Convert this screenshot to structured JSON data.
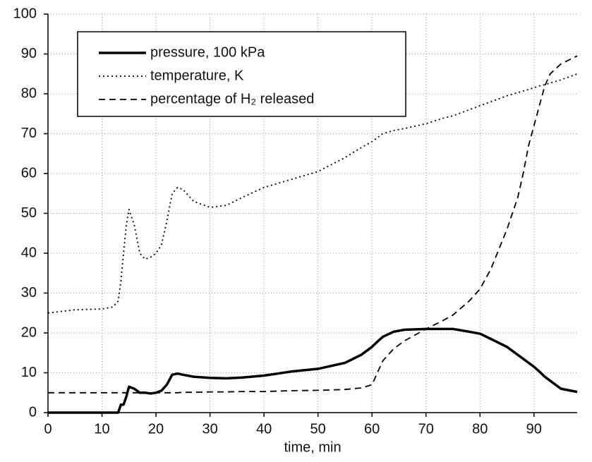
{
  "chart_data": {
    "type": "line",
    "xlabel": "time, min",
    "x": [
      0,
      5,
      10,
      12,
      13,
      13.5,
      14,
      14.5,
      15,
      16,
      17,
      18,
      19,
      20,
      21,
      22,
      23,
      24,
      25,
      27,
      30,
      33,
      36,
      40,
      45,
      50,
      55,
      58,
      60,
      61,
      62,
      64,
      66,
      70,
      73,
      75,
      78,
      80,
      82,
      85,
      87,
      88,
      89,
      90,
      91,
      92,
      93,
      95,
      98
    ],
    "series": [
      {
        "name": "pressure, 100 kPa",
        "color": "#000000",
        "style": "solid",
        "values": [
          0,
          0,
          0,
          0,
          0,
          2,
          2,
          4,
          6.5,
          6,
          5,
          5,
          4.8,
          5,
          5.5,
          7,
          9.5,
          9.8,
          9.5,
          9,
          8.7,
          8.6,
          8.8,
          9.3,
          10.3,
          11,
          12.5,
          14.5,
          16.5,
          17.8,
          19,
          20.3,
          20.8,
          21,
          21,
          21,
          20.3,
          19.8,
          18.5,
          16.5,
          14.5,
          13.5,
          12.5,
          11.5,
          10.3,
          9,
          8,
          6,
          5.2
        ]
      },
      {
        "name": "temperature, K",
        "color": "#000000",
        "style": "dotted",
        "values": [
          25,
          25.8,
          26,
          26.5,
          28,
          33,
          40,
          47,
          51,
          47,
          40,
          38.5,
          39,
          40,
          42,
          48,
          55,
          56.5,
          56,
          53,
          51.5,
          52,
          54,
          56.5,
          58.5,
          60.5,
          64,
          66.5,
          68,
          69,
          70,
          70.8,
          71.3,
          72.5,
          73.8,
          74.5,
          76,
          77,
          78,
          79.5,
          80.3,
          80.7,
          81.1,
          81.5,
          82,
          82.3,
          82.7,
          83.5,
          85
        ]
      },
      {
        "name": "percentage of H₂ released",
        "color": "#000000",
        "style": "dashed",
        "values": [
          5,
          5,
          5,
          5,
          5,
          5,
          5,
          5,
          5,
          5,
          5,
          5,
          5,
          5,
          5,
          5,
          5,
          5,
          5.1,
          5.1,
          5.2,
          5.2,
          5.3,
          5.3,
          5.5,
          5.6,
          5.8,
          6.2,
          7,
          10,
          13,
          16,
          18,
          21,
          23,
          24.5,
          28,
          31,
          36,
          46,
          54,
          60,
          67,
          72,
          77,
          82,
          85,
          87.5,
          89.5
        ]
      }
    ],
    "xlim": [
      0,
      98
    ],
    "xticks": [
      0,
      10,
      20,
      30,
      40,
      50,
      60,
      70,
      80,
      90
    ],
    "ylim": [
      0,
      100
    ],
    "yticks": [
      0,
      10,
      20,
      30,
      40,
      50,
      60,
      70,
      80,
      90,
      100
    ],
    "grid": true,
    "legend": "upper left"
  }
}
